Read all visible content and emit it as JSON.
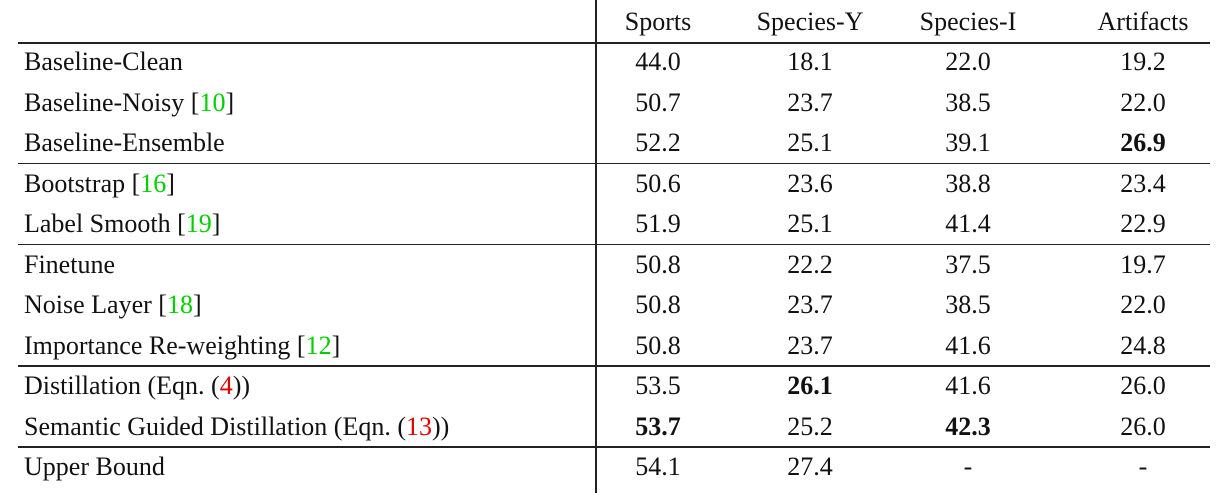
{
  "table": {
    "columns": [
      "Sports",
      "Species-Y",
      "Species-I",
      "Artifacts"
    ],
    "groups": [
      {
        "rows": [
          {
            "label": [
              {
                "text": "Baseline-Clean"
              }
            ],
            "cells": [
              "44.0",
              "18.1",
              "22.0",
              "19.2"
            ]
          },
          {
            "label": [
              {
                "text": "Baseline-Noisy ["
              },
              {
                "text": "10",
                "color": "#00d000"
              },
              {
                "text": "]"
              }
            ],
            "cells": [
              "50.7",
              "23.7",
              "38.5",
              "22.0"
            ]
          },
          {
            "label": [
              {
                "text": "Baseline-Ensemble"
              }
            ],
            "cells": [
              "52.2",
              "25.1",
              "39.1",
              {
                "text": "26.9",
                "bold": true
              }
            ]
          }
        ]
      },
      {
        "rows": [
          {
            "label": [
              {
                "text": "Bootstrap ["
              },
              {
                "text": "16",
                "color": "#00d000"
              },
              {
                "text": "]"
              }
            ],
            "cells": [
              "50.6",
              "23.6",
              "38.8",
              "23.4"
            ]
          },
          {
            "label": [
              {
                "text": "Label Smooth ["
              },
              {
                "text": "19",
                "color": "#00d000"
              },
              {
                "text": "]"
              }
            ],
            "cells": [
              "51.9",
              "25.1",
              "41.4",
              "22.9"
            ]
          }
        ]
      },
      {
        "rows": [
          {
            "label": [
              {
                "text": "Finetune"
              }
            ],
            "cells": [
              "50.8",
              "22.2",
              "37.5",
              "19.7"
            ]
          },
          {
            "label": [
              {
                "text": "Noise Layer ["
              },
              {
                "text": "18",
                "color": "#00d000"
              },
              {
                "text": "]"
              }
            ],
            "cells": [
              "50.8",
              "23.7",
              "38.5",
              "22.0"
            ]
          },
          {
            "label": [
              {
                "text": "Importance Re-weighting ["
              },
              {
                "text": "12",
                "color": "#00d000"
              },
              {
                "text": "]"
              }
            ],
            "cells": [
              "50.8",
              "23.7",
              "41.6",
              "24.8"
            ]
          }
        ]
      },
      {
        "rows": [
          {
            "label": [
              {
                "text": "Distillation (Eqn. ("
              },
              {
                "text": "4",
                "color": "#e00000"
              },
              {
                "text": "))"
              }
            ],
            "cells": [
              "53.5",
              {
                "text": "26.1",
                "bold": true
              },
              "41.6",
              "26.0"
            ]
          },
          {
            "label": [
              {
                "text": "Semantic Guided Distillation (Eqn. ("
              },
              {
                "text": "13",
                "color": "#e00000"
              },
              {
                "text": "))"
              }
            ],
            "cells": [
              {
                "text": "53.7",
                "bold": true
              },
              "25.2",
              {
                "text": "42.3",
                "bold": true
              },
              "26.0"
            ]
          }
        ]
      },
      {
        "rows": [
          {
            "label": [
              {
                "text": "Upper Bound"
              }
            ],
            "cells": [
              "54.1",
              "27.4",
              "-",
              "-"
            ]
          }
        ]
      }
    ]
  }
}
